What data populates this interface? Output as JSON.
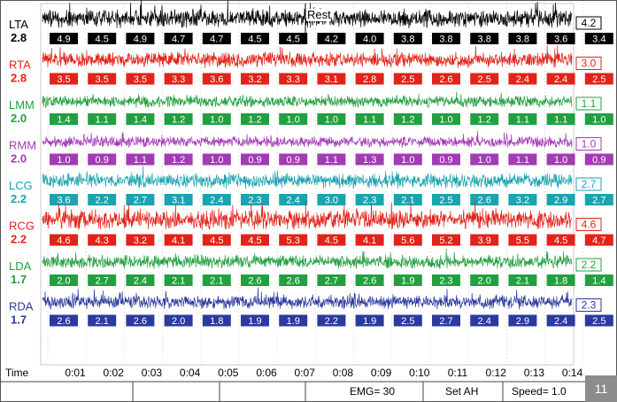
{
  "marker": "Rest",
  "channels": [
    {
      "name": "LTA",
      "gain": "2.8",
      "color": "#000000",
      "current": "4.2",
      "values": [
        "4.9",
        "4.5",
        "4.9",
        "4.7",
        "4.7",
        "4.5",
        "4.5",
        "4.2",
        "4.0",
        "3.8",
        "3.8",
        "3.8",
        "3.8",
        "3.6",
        "3.4"
      ]
    },
    {
      "name": "RTA",
      "gain": "2.8",
      "color": "#e2231a",
      "current": "3.0",
      "values": [
        "3.5",
        "3.5",
        "3.5",
        "3.3",
        "3.6",
        "3.2",
        "3.3",
        "3.1",
        "2.8",
        "2.5",
        "2.6",
        "2.5",
        "2.4",
        "2.4",
        "2.5"
      ]
    },
    {
      "name": "LMM",
      "gain": "2.0",
      "color": "#22a040",
      "current": "1.1",
      "values": [
        "1.4",
        "1.1",
        "1.4",
        "1.2",
        "1.0",
        "1.2",
        "1.0",
        "1.0",
        "1.1",
        "1.2",
        "1.0",
        "1.2",
        "1.1",
        "1.1",
        "1.0"
      ]
    },
    {
      "name": "RMM",
      "gain": "2.0",
      "color": "#a23bb5",
      "current": "1.0",
      "values": [
        "1.0",
        "0.9",
        "1.1",
        "1.2",
        "1.0",
        "0.9",
        "0.9",
        "1.1",
        "1.3",
        "1.0",
        "0.9",
        "1.0",
        "1.1",
        "1.0",
        "0.9"
      ]
    },
    {
      "name": "LCG",
      "gain": "2.2",
      "color": "#1aa3b0",
      "current": "2.7",
      "values": [
        "3.6",
        "2.2",
        "2.7",
        "3.1",
        "2.4",
        "2.3",
        "2.4",
        "3.0",
        "2.3",
        "2.1",
        "2.5",
        "2.6",
        "3.2",
        "2.9",
        "2.7"
      ]
    },
    {
      "name": "RCG",
      "gain": "2.2",
      "color": "#e2231a",
      "current": "4.6",
      "values": [
        "4.6",
        "4.3",
        "3.2",
        "4.1",
        "4.5",
        "4.5",
        "5.3",
        "4.5",
        "4.1",
        "5.6",
        "5.2",
        "3.9",
        "5.5",
        "4.5",
        "4.7"
      ]
    },
    {
      "name": "LDA",
      "gain": "1.7",
      "color": "#22a040",
      "current": "2.2",
      "values": [
        "2.0",
        "2.7",
        "2.4",
        "2.1",
        "2.1",
        "2.6",
        "2.6",
        "2.7",
        "2.6",
        "1.9",
        "2.3",
        "2.0",
        "2.1",
        "1.8",
        "1.4"
      ]
    },
    {
      "name": "RDA",
      "gain": "1.7",
      "color": "#2b3a9f",
      "current": "2.3",
      "values": [
        "2.6",
        "2.1",
        "2.6",
        "2.0",
        "1.8",
        "1.9",
        "1.9",
        "2.2",
        "1.9",
        "2.5",
        "2.7",
        "2.4",
        "2.9",
        "2.4",
        "2.5"
      ]
    }
  ],
  "time": {
    "label": "Time",
    "ticks": [
      "0:01",
      "0:02",
      "0:03",
      "0:04",
      "0:05",
      "0:06",
      "0:07",
      "0:08",
      "0:09",
      "0:10",
      "0:11",
      "0:12",
      "0:13",
      "0:14"
    ]
  },
  "status": {
    "emg": "EMG= 30",
    "set": "Set AH",
    "speed": "Speed= 1.0"
  },
  "page_number": "11"
}
